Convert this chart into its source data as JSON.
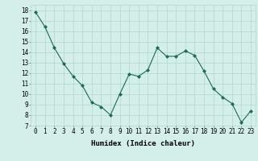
{
  "x": [
    0,
    1,
    2,
    3,
    4,
    5,
    6,
    7,
    8,
    9,
    10,
    11,
    12,
    13,
    14,
    15,
    16,
    17,
    18,
    19,
    20,
    21,
    22,
    23
  ],
  "y": [
    17.8,
    16.4,
    14.4,
    12.9,
    11.7,
    10.8,
    9.2,
    8.8,
    8.0,
    10.0,
    11.9,
    11.7,
    12.3,
    14.4,
    13.6,
    13.6,
    14.1,
    13.7,
    12.2,
    10.5,
    9.7,
    9.1,
    7.3,
    8.4
  ],
  "line_color": "#1a6b5a",
  "marker": "D",
  "marker_size": 2.0,
  "bg_color": "#d4eeea",
  "grid_color": "#b0d8d0",
  "xlabel": "Humidex (Indice chaleur)",
  "xlim": [
    -0.5,
    23.5
  ],
  "ylim": [
    7,
    18.5
  ],
  "xticks": [
    0,
    1,
    2,
    3,
    4,
    5,
    6,
    7,
    8,
    9,
    10,
    11,
    12,
    13,
    14,
    15,
    16,
    17,
    18,
    19,
    20,
    21,
    22,
    23
  ],
  "yticks": [
    7,
    8,
    9,
    10,
    11,
    12,
    13,
    14,
    15,
    16,
    17,
    18
  ],
  "xlabel_fontsize": 6.5,
  "tick_fontsize": 5.5
}
